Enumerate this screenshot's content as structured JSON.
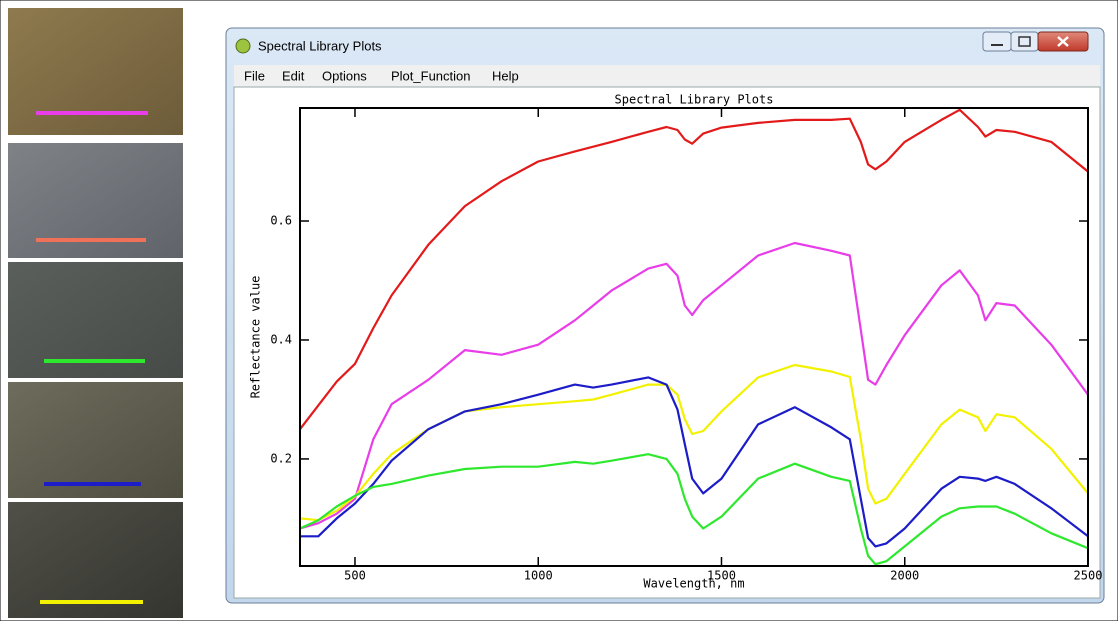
{
  "window": {
    "title": "Spectral Library Plots",
    "menu": [
      "File",
      "Edit",
      "Options",
      "Plot_Function",
      "Help"
    ]
  },
  "chart_data": {
    "type": "line",
    "title": "Spectral Library Plots",
    "x_label": "Wavelength, nm",
    "y_label": "Reflectance value",
    "x": [
      350,
      400,
      450,
      500,
      550,
      600,
      700,
      800,
      900,
      1000,
      1100,
      1150,
      1200,
      1300,
      1350,
      1380,
      1400,
      1420,
      1450,
      1500,
      1600,
      1700,
      1800,
      1850,
      1880,
      1900,
      1920,
      1950,
      2000,
      2100,
      2150,
      2200,
      2220,
      2250,
      2300,
      2400,
      2500
    ],
    "series": [
      {
        "color": "#e31a1a",
        "values": [
          0.25,
          0.29,
          0.33,
          0.36,
          0.42,
          0.475,
          0.56,
          0.625,
          0.667,
          0.7,
          0.717,
          0.725,
          0.733,
          0.75,
          0.758,
          0.753,
          0.737,
          0.73,
          0.747,
          0.757,
          0.765,
          0.77,
          0.77,
          0.772,
          0.733,
          0.695,
          0.687,
          0.7,
          0.733,
          0.77,
          0.787,
          0.758,
          0.742,
          0.753,
          0.75,
          0.733,
          0.683
        ]
      },
      {
        "color": "#e83de8",
        "values": [
          0.083,
          0.092,
          0.108,
          0.133,
          0.233,
          0.292,
          0.333,
          0.383,
          0.375,
          0.392,
          0.433,
          0.458,
          0.483,
          0.52,
          0.528,
          0.508,
          0.458,
          0.442,
          0.467,
          0.492,
          0.542,
          0.563,
          0.55,
          0.542,
          0.417,
          0.333,
          0.325,
          0.358,
          0.408,
          0.492,
          0.517,
          0.475,
          0.433,
          0.462,
          0.458,
          0.392,
          0.308
        ]
      },
      {
        "color": "#f2f200",
        "values": [
          0.1,
          0.097,
          0.113,
          0.137,
          0.175,
          0.208,
          0.25,
          0.28,
          0.287,
          0.292,
          0.297,
          0.3,
          0.308,
          0.325,
          0.325,
          0.308,
          0.267,
          0.242,
          0.247,
          0.28,
          0.337,
          0.358,
          0.347,
          0.338,
          0.233,
          0.15,
          0.125,
          0.133,
          0.175,
          0.258,
          0.283,
          0.27,
          0.247,
          0.275,
          0.27,
          0.217,
          0.142
        ]
      },
      {
        "color": "#1c1cc8",
        "values": [
          0.07,
          0.07,
          0.1,
          0.125,
          0.158,
          0.197,
          0.25,
          0.28,
          0.292,
          0.308,
          0.325,
          0.32,
          0.325,
          0.337,
          0.325,
          0.283,
          0.225,
          0.167,
          0.142,
          0.167,
          0.258,
          0.287,
          0.253,
          0.233,
          0.133,
          0.067,
          0.053,
          0.058,
          0.083,
          0.15,
          0.17,
          0.167,
          0.163,
          0.17,
          0.158,
          0.117,
          0.07
        ]
      },
      {
        "color": "#2ee82e",
        "values": [
          0.083,
          0.097,
          0.12,
          0.138,
          0.153,
          0.158,
          0.172,
          0.183,
          0.187,
          0.187,
          0.195,
          0.192,
          0.197,
          0.208,
          0.2,
          0.175,
          0.133,
          0.103,
          0.083,
          0.103,
          0.167,
          0.192,
          0.17,
          0.163,
          0.083,
          0.037,
          0.023,
          0.028,
          0.053,
          0.103,
          0.117,
          0.12,
          0.12,
          0.12,
          0.108,
          0.075,
          0.05
        ]
      }
    ],
    "xlim": [
      350,
      2500
    ],
    "ylim": [
      0.02,
      0.79
    ],
    "xticks": [
      500,
      1000,
      1500,
      2000,
      2500
    ],
    "yticks": [
      0.2,
      0.4,
      0.6
    ]
  }
}
